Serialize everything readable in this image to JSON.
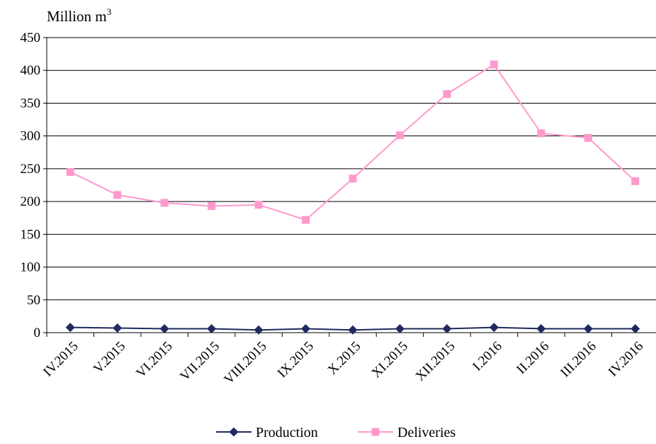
{
  "chart_data": {
    "type": "line",
    "ylabel": "Million m",
    "ylabel_superscript": "3",
    "ylim": [
      0,
      450
    ],
    "yticks": [
      0,
      50,
      100,
      150,
      200,
      250,
      300,
      350,
      400,
      450
    ],
    "grid": true,
    "legend_position": "bottom",
    "categories": [
      "IV.2015",
      "V.2015",
      "VI.2015",
      "VII.2015",
      "VIII.2015",
      "IX.2015",
      "X.2015",
      "XI.2015",
      "XII.2015",
      "I.2016",
      "II.2016",
      "III.2016",
      "IV.2016"
    ],
    "series": [
      {
        "name": "Production",
        "color": "#1f2a5e",
        "marker": "diamond",
        "values": [
          8,
          7,
          6,
          6,
          4,
          6,
          4,
          6,
          6,
          8,
          6,
          6,
          6
        ]
      },
      {
        "name": "Deliveries",
        "color": "#ff99cc",
        "marker": "square",
        "values": [
          245,
          210,
          198,
          193,
          195,
          172,
          235,
          301,
          364,
          409,
          304,
          297,
          231
        ]
      }
    ]
  }
}
